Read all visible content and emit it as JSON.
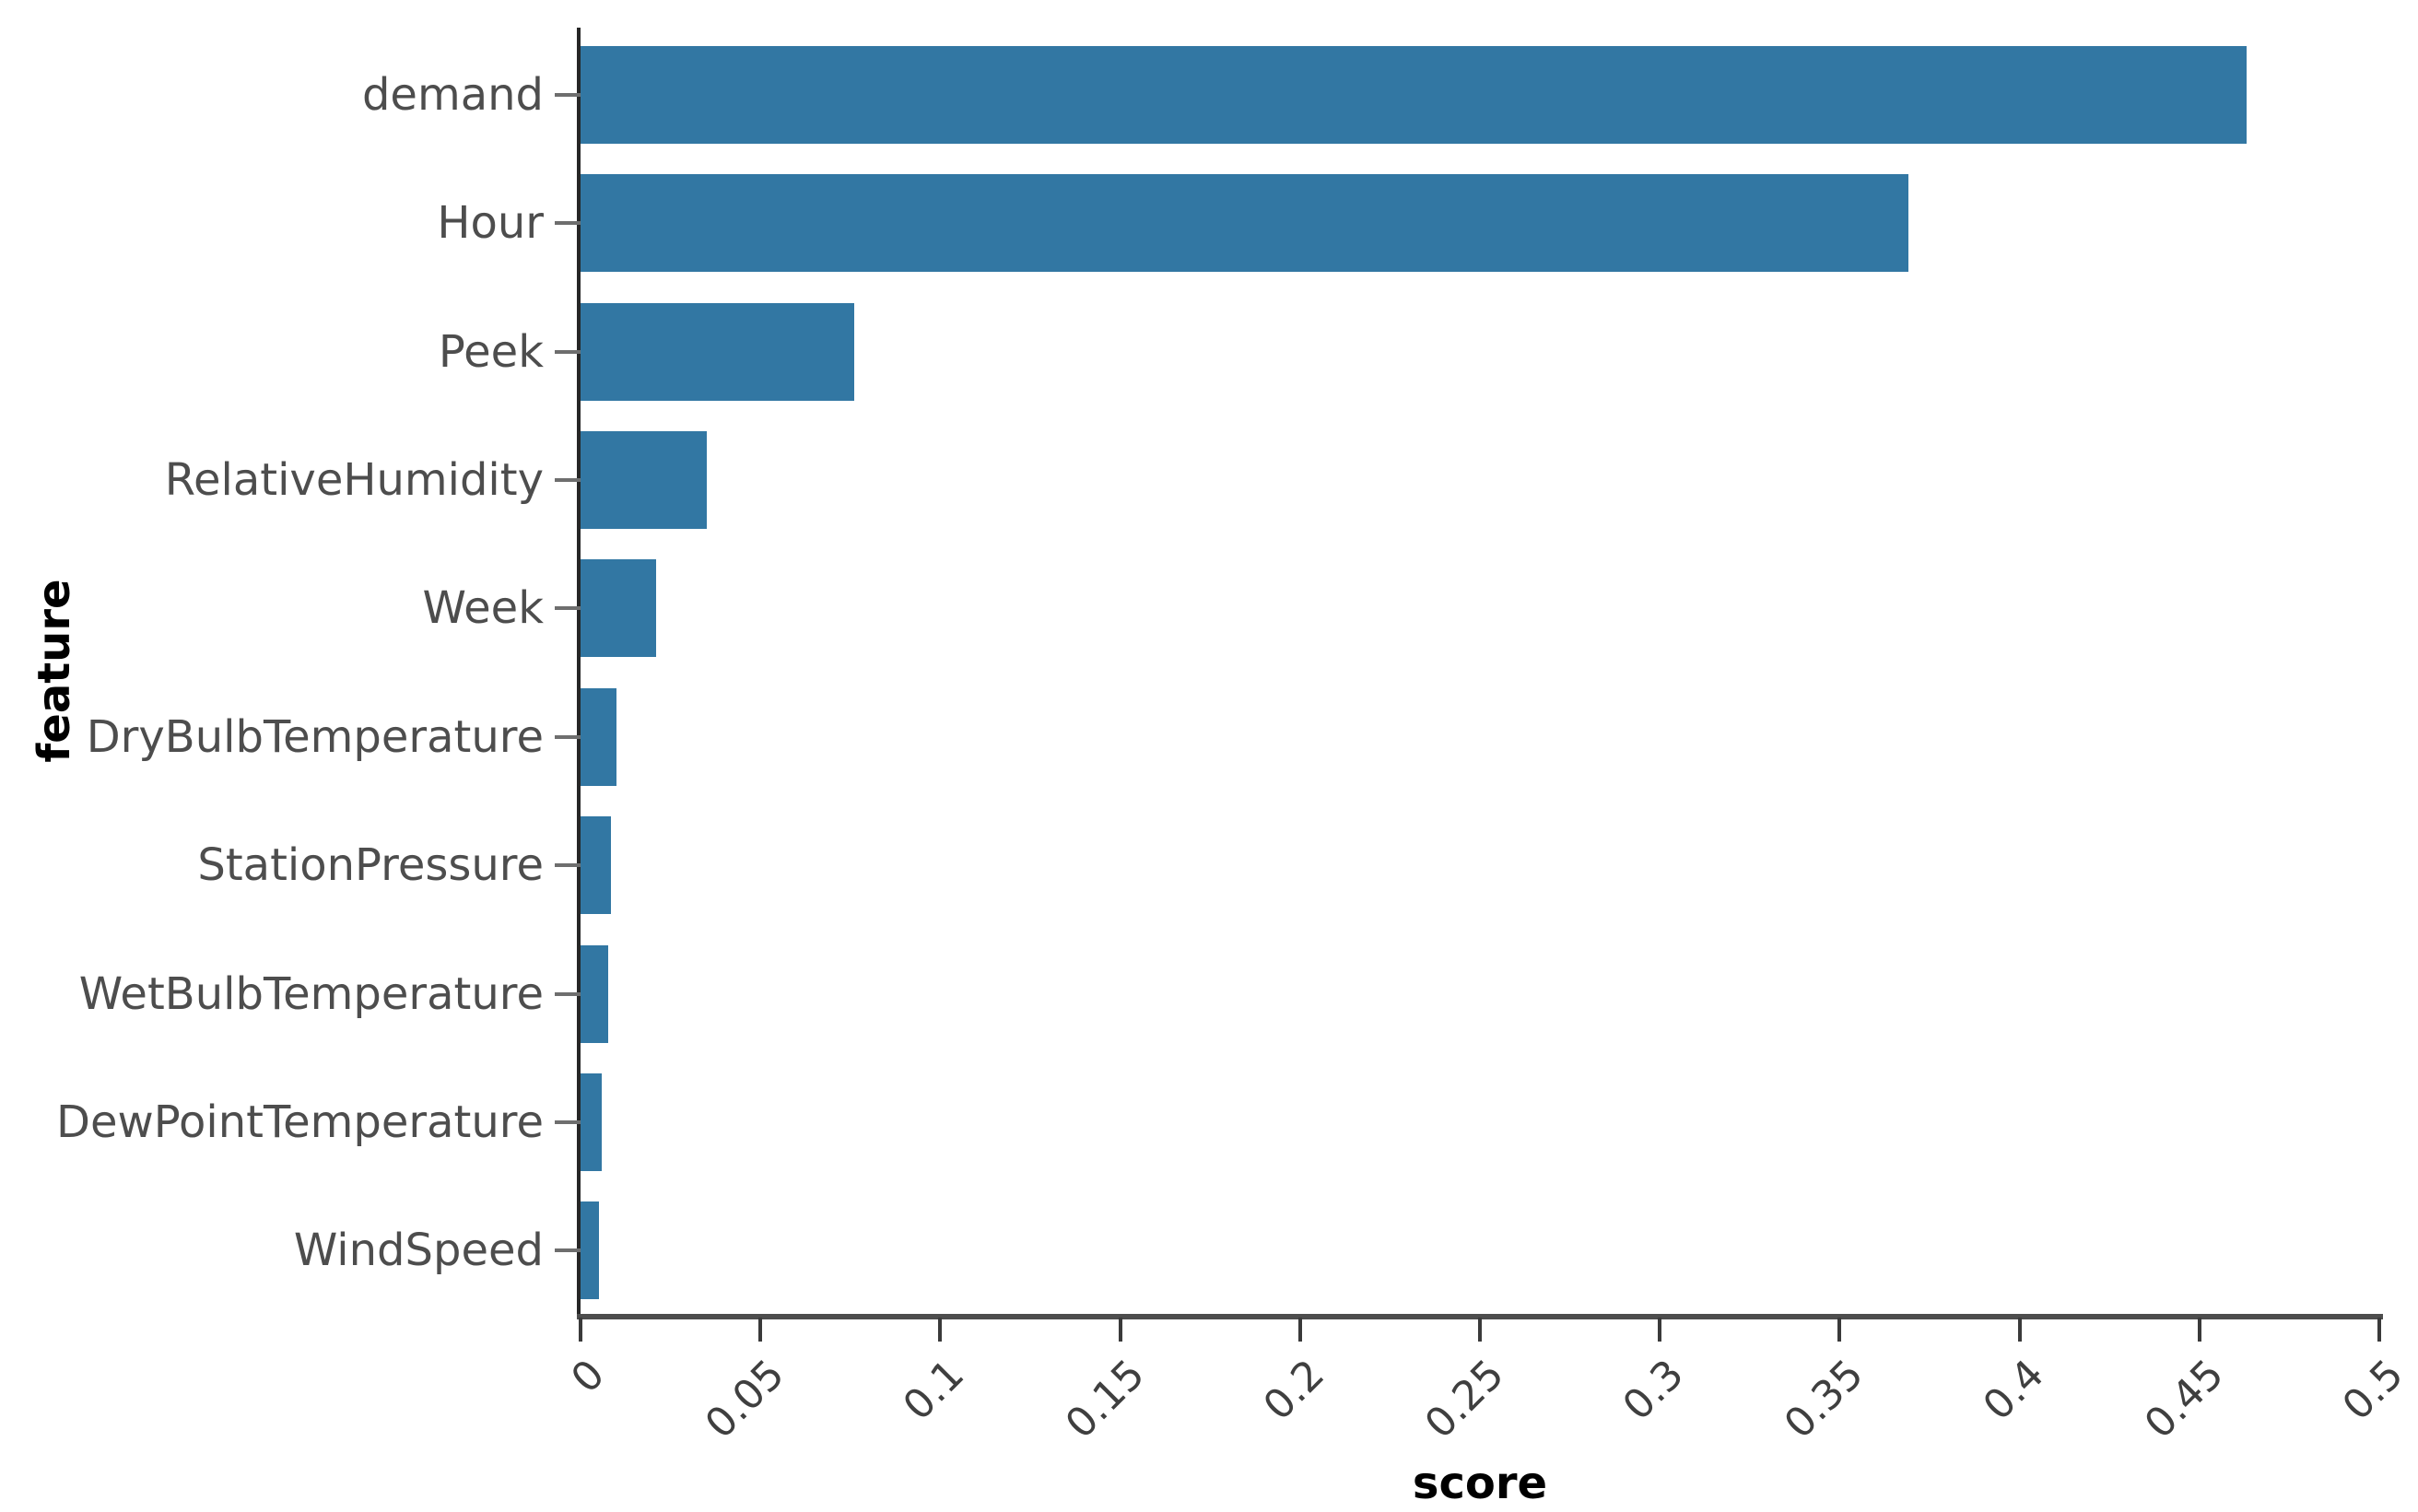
{
  "chart_data": {
    "type": "bar",
    "orientation": "horizontal",
    "title": "",
    "xlabel": "score",
    "ylabel": "feature",
    "categories": [
      "demand",
      "Hour",
      "Peek",
      "RelativeHumidity",
      "Week",
      "DryBulbTemperature",
      "StationPressure",
      "WetBulbTemperature",
      "DewPointTemperature",
      "WindSpeed"
    ],
    "values": [
      0.463,
      0.369,
      0.076,
      0.035,
      0.021,
      0.01,
      0.0085,
      0.0078,
      0.006,
      0.005
    ],
    "xlim": [
      0,
      0.5
    ],
    "x_ticks": [
      0,
      0.05,
      0.1,
      0.15,
      0.2,
      0.25,
      0.3,
      0.35,
      0.4,
      0.45,
      0.5
    ],
    "x_tick_labels": [
      "0",
      "0.05",
      "0.1",
      "0.15",
      "0.2",
      "0.25",
      "0.3",
      "0.35",
      "0.4",
      "0.45",
      "0.5"
    ],
    "x_tick_rotation_deg": 45,
    "grid": false,
    "legend": false,
    "bar_color": "#3277a3",
    "axis_color": "#262626"
  }
}
